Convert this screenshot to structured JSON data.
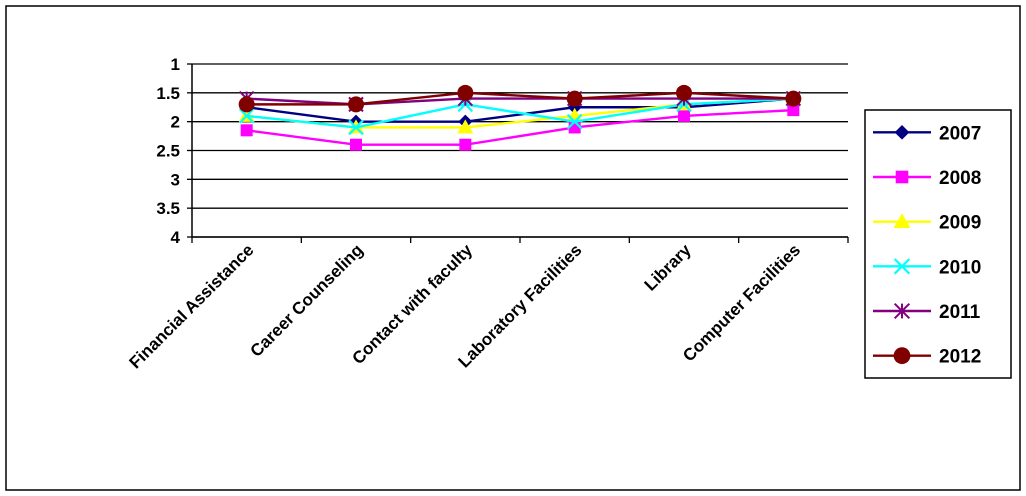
{
  "chart_data": {
    "type": "line",
    "title": "",
    "xlabel": "",
    "ylabel": "",
    "categories": [
      "Financial Assistance",
      "Career Counseling",
      "Contact with faculty",
      "Laboratory Facilities",
      "Library",
      "Computer Facilities"
    ],
    "y_tick_labels": [
      "1",
      "1.5",
      "2",
      "2.5",
      "3",
      "3.5",
      "4"
    ],
    "ylim": [
      1,
      4
    ],
    "y_reversed": true,
    "grid": "horizontal",
    "legend_position": "right",
    "series": [
      {
        "name": "2007",
        "color": "#000080",
        "marker": "diamond",
        "values": [
          1.75,
          2.0,
          2.0,
          1.75,
          1.75,
          1.6
        ]
      },
      {
        "name": "2008",
        "color": "#FF00FF",
        "marker": "square",
        "values": [
          2.15,
          2.4,
          2.4,
          2.1,
          1.9,
          1.8
        ]
      },
      {
        "name": "2009",
        "color": "#FFFF00",
        "marker": "triangle",
        "values": [
          1.9,
          2.1,
          2.1,
          1.9,
          1.7,
          1.6
        ]
      },
      {
        "name": "2010",
        "color": "#00FFFF",
        "marker": "x",
        "values": [
          1.9,
          2.1,
          1.7,
          2.0,
          1.7,
          1.6
        ]
      },
      {
        "name": "2011",
        "color": "#800080",
        "marker": "star",
        "values": [
          1.6,
          1.7,
          1.6,
          1.6,
          1.6,
          1.6
        ]
      },
      {
        "name": "2012",
        "color": "#800000",
        "marker": "circle",
        "values": [
          1.7,
          1.7,
          1.5,
          1.6,
          1.5,
          1.6
        ]
      }
    ]
  }
}
